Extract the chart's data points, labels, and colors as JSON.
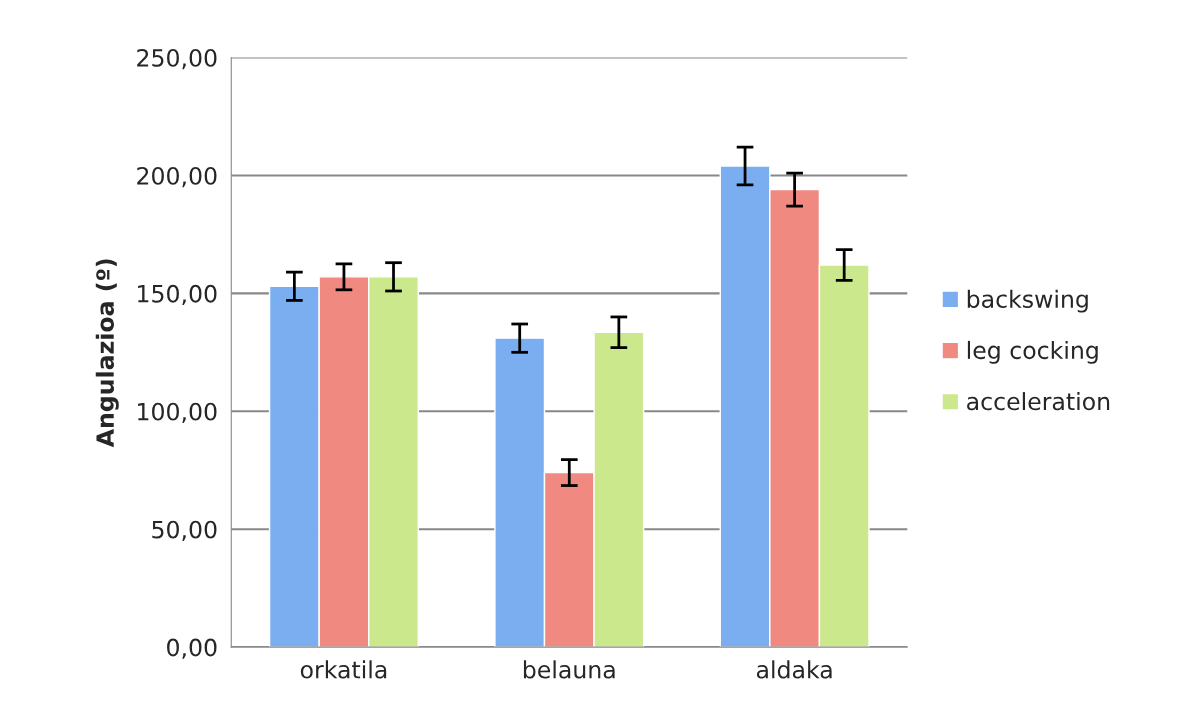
{
  "chart_data": {
    "type": "bar",
    "ylabel": "Angulazioa (º)",
    "categories": [
      "orkatila",
      "belauna",
      "aldaka"
    ],
    "series": [
      {
        "name": "backswing",
        "color": "#7aaef0",
        "values": [
          153,
          131,
          204
        ],
        "errors": [
          6,
          6,
          8
        ]
      },
      {
        "name": "leg cocking",
        "color": "#f08a80",
        "values": [
          157,
          74,
          194
        ],
        "errors": [
          5.5,
          5.5,
          7
        ]
      },
      {
        "name": "acceleration",
        "color": "#cce88c",
        "values": [
          157,
          133.5,
          162
        ],
        "errors": [
          6,
          6.5,
          6.5
        ]
      }
    ],
    "ylim": [
      0,
      250
    ],
    "yticks": [
      {
        "value": 0,
        "label": "0,00"
      },
      {
        "value": 50,
        "label": "50,00"
      },
      {
        "value": 100,
        "label": "100,00"
      },
      {
        "value": 150,
        "label": "150,00"
      },
      {
        "value": 200,
        "label": "200,00"
      },
      {
        "value": 250,
        "label": "250,00"
      }
    ],
    "grid": "y",
    "legend": "right"
  }
}
